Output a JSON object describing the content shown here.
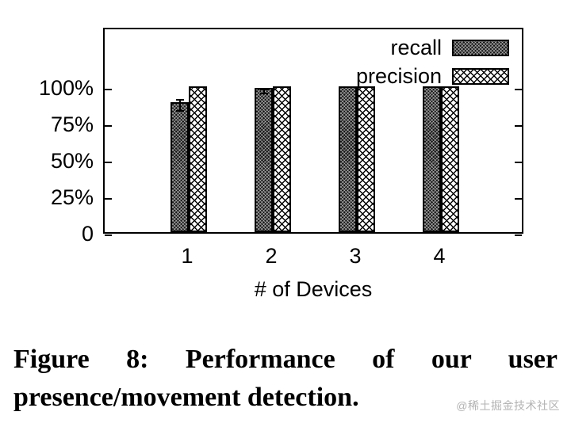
{
  "figure": {
    "caption": "Figure 8: Performance of our user presence/movement detection.",
    "watermark": "@稀土掘金技术社区"
  },
  "chart_data": {
    "type": "bar",
    "title": "",
    "xlabel": "# of Devices",
    "ylabel": "",
    "categories": [
      "1",
      "2",
      "3",
      "4"
    ],
    "series": [
      {
        "name": "recall",
        "values": [
          89,
          98.5,
          100,
          100
        ],
        "errors": [
          4,
          1.5,
          0,
          0
        ],
        "pattern": "dense-diagonal-hatch-dark"
      },
      {
        "name": "precision",
        "values": [
          100,
          100,
          100,
          100
        ],
        "errors": [
          0,
          0,
          0,
          0
        ],
        "pattern": "open-crosshatch"
      }
    ],
    "yticks": [
      {
        "value": 0,
        "label": "0"
      },
      {
        "value": 25,
        "label": "25%"
      },
      {
        "value": 50,
        "label": "50%"
      },
      {
        "value": 75,
        "label": "75%"
      },
      {
        "value": 100,
        "label": "100%"
      }
    ],
    "ylim": [
      0,
      141
    ],
    "grid": false,
    "legend_position": "top-right-inside",
    "bar_border_color": "#000000"
  },
  "colors": {
    "background": "#ffffff",
    "text": "#000000",
    "watermark": "#b3b3b3"
  }
}
